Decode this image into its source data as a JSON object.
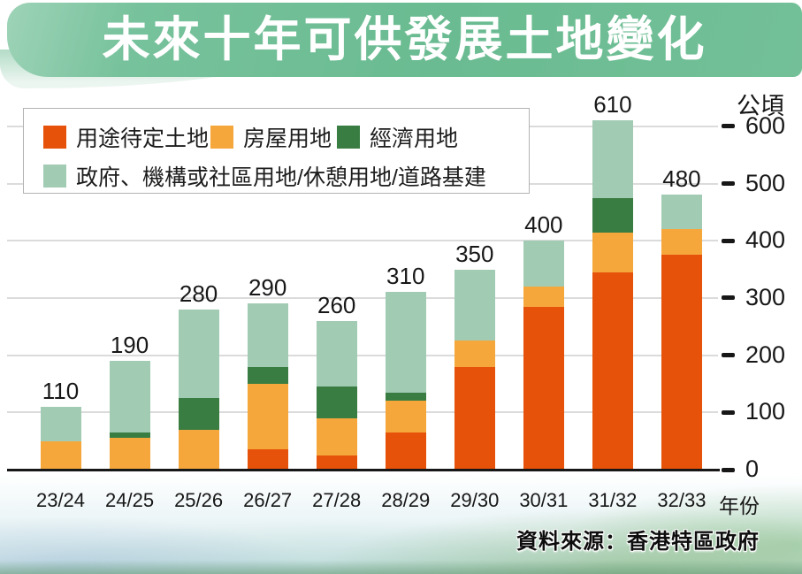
{
  "title": "未來十年可供發展土地變化",
  "source": "資料來源：香港特區政府",
  "y_axis": {
    "unit": "公頃",
    "ticks": [
      0,
      100,
      200,
      300,
      400,
      500,
      600
    ]
  },
  "x_axis": {
    "title": "年份"
  },
  "colors": {
    "banner_green": "#6ebd95",
    "undetermined": "#e6520a",
    "housing": "#f5a73c",
    "economic": "#397d42",
    "gic": "#a2cbb4",
    "gridline": "#dbdbdb",
    "axis": "#171717"
  },
  "chart_data": {
    "type": "bar",
    "stacked": true,
    "title": "未來十年可供發展土地變化",
    "xlabel": "年份",
    "ylabel": "公頃",
    "ylim": [
      0,
      650
    ],
    "grid": true,
    "legend_position": "top-left",
    "categories": [
      "23/24",
      "24/25",
      "25/26",
      "26/27",
      "27/28",
      "28/29",
      "29/30",
      "30/31",
      "31/32",
      "32/33"
    ],
    "totals": [
      110,
      190,
      280,
      290,
      260,
      310,
      350,
      400,
      610,
      480
    ],
    "series": [
      {
        "key": "undetermined",
        "name": "用途待定土地",
        "color": "#e6520a",
        "values": [
          0,
          0,
          0,
          35,
          25,
          65,
          180,
          285,
          345,
          375
        ]
      },
      {
        "key": "housing",
        "name": "房屋用地",
        "color": "#f5a73c",
        "values": [
          50,
          55,
          70,
          115,
          65,
          55,
          45,
          35,
          70,
          45
        ]
      },
      {
        "key": "economic",
        "name": "經濟用地",
        "color": "#397d42",
        "values": [
          0,
          10,
          55,
          30,
          55,
          15,
          0,
          0,
          60,
          0
        ]
      },
      {
        "key": "gic",
        "name": "政府、機構或社區用地/休憩用地/道路基建",
        "color": "#a2cbb4",
        "values": [
          60,
          125,
          155,
          110,
          115,
          175,
          125,
          80,
          135,
          60
        ]
      }
    ]
  }
}
